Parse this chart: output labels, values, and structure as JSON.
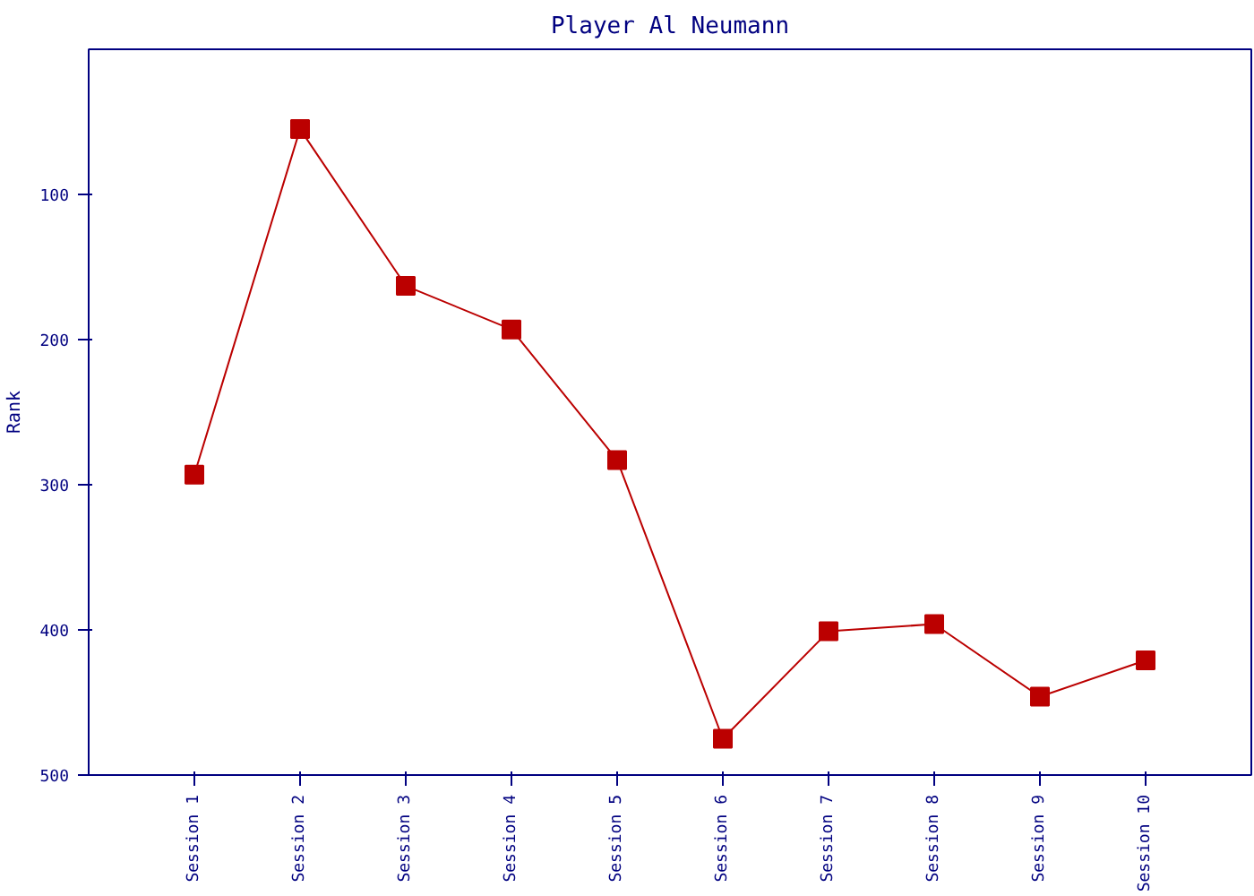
{
  "chart_data": {
    "type": "line",
    "title": "Player Al Neumann",
    "ylabel": "Rank",
    "categories": [
      "Session 1",
      "Session 2",
      "Session 3",
      "Session 4",
      "Session 5",
      "Session 6",
      "Session 7",
      "Session 8",
      "Session 9",
      "Session 10"
    ],
    "series": [
      {
        "color": "#bb0000",
        "values": [
          293,
          55,
          163,
          193,
          283,
          475,
          401,
          396,
          446,
          421
        ]
      }
    ],
    "ylim": [
      500,
      0
    ],
    "yticks": [
      100,
      200,
      300,
      400,
      500
    ],
    "grid": false,
    "marker": "square",
    "line_style": "solid"
  }
}
